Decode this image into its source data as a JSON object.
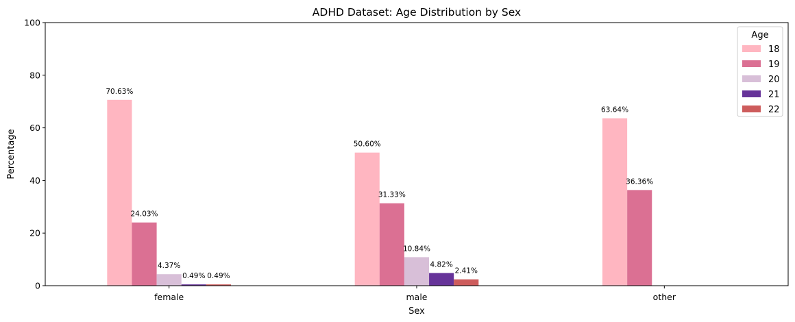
{
  "chart_data": {
    "type": "bar",
    "title": "ADHD Dataset: Age Distribution by Sex",
    "xlabel": "Sex",
    "ylabel": "Percentage",
    "ylim": [
      0,
      100
    ],
    "yticks": [
      0,
      20,
      40,
      60,
      80,
      100
    ],
    "categories": [
      "female",
      "male",
      "other"
    ],
    "legend": {
      "title": "Age",
      "placement": "top-right"
    },
    "grid": false,
    "series": [
      {
        "name": "18",
        "color": "#FFB6C1",
        "values": [
          70.63,
          50.6,
          63.64
        ],
        "labels": [
          "70.63%",
          "50.60%",
          "63.64%"
        ]
      },
      {
        "name": "19",
        "color": "#DB7093",
        "values": [
          24.03,
          31.33,
          36.36
        ],
        "labels": [
          "24.03%",
          "31.33%",
          "36.36%"
        ]
      },
      {
        "name": "20",
        "color": "#D8BFD8",
        "values": [
          4.37,
          10.84,
          null
        ],
        "labels": [
          "4.37%",
          "10.84%",
          ""
        ]
      },
      {
        "name": "21",
        "color": "#663399",
        "values": [
          0.49,
          4.82,
          null
        ],
        "labels": [
          "0.49%",
          "4.82%",
          ""
        ]
      },
      {
        "name": "22",
        "color": "#CD5C5C",
        "values": [
          0.49,
          2.41,
          null
        ],
        "labels": [
          "0.49%",
          "2.41%",
          ""
        ]
      }
    ]
  }
}
